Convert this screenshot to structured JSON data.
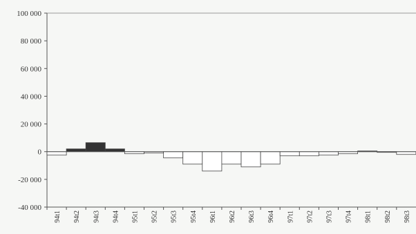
{
  "chart_data": {
    "type": "bar",
    "title": "",
    "xlabel": "",
    "ylabel": "",
    "ylim": [
      -40000,
      100000
    ],
    "yticks": [
      100000,
      80000,
      60000,
      40000,
      20000,
      0,
      -20000,
      -40000
    ],
    "ytick_labels": [
      "100 000",
      "80 000",
      "60 000",
      "40 000",
      "20 000",
      "0",
      "-20 000",
      "-40 000"
    ],
    "grid": false,
    "categories": [
      "94t1",
      "94t2",
      "94t3",
      "94t4",
      "95t1",
      "95t2",
      "95t3",
      "95t4",
      "96t1",
      "96t2",
      "96t3",
      "96t4",
      "97t1",
      "97t2",
      "97t3",
      "97t4",
      "98t1",
      "98t2",
      "98t3"
    ],
    "values": [
      -2500,
      2000,
      6500,
      2000,
      -1500,
      -1000,
      -4500,
      -9000,
      -14000,
      -9000,
      -11000,
      -9000,
      -3000,
      -3000,
      -2500,
      -1500,
      500,
      0,
      -2000
    ],
    "colors": {
      "positive": "#333333",
      "negative": "#ffffff",
      "axis": "#555555",
      "bar_edge": "#444444"
    }
  }
}
